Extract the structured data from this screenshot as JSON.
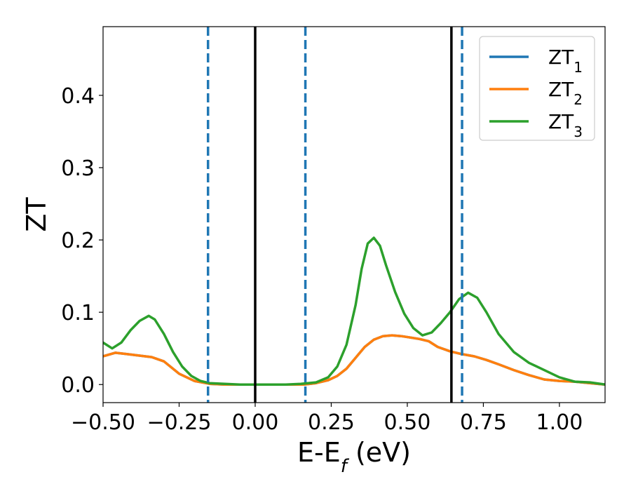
{
  "chart_data": {
    "type": "line",
    "xlabel": "E-E_f (eV)",
    "ylabel": "ZT",
    "xlim": [
      -0.5,
      1.15
    ],
    "ylim": [
      -0.025,
      0.495
    ],
    "xticks": [
      -0.5,
      -0.25,
      0.0,
      0.25,
      0.5,
      0.75,
      1.0
    ],
    "xtick_labels": [
      "−0.50",
      "−0.25",
      "0.00",
      "0.25",
      "0.50",
      "0.75",
      "1.00"
    ],
    "yticks": [
      0.0,
      0.1,
      0.2,
      0.3,
      0.4
    ],
    "ytick_labels": [
      "0.0",
      "0.1",
      "0.2",
      "0.3",
      "0.4"
    ],
    "grid": false,
    "legend_position": "top-right",
    "series": [
      {
        "name": "ZT1",
        "color": "#1f77b4",
        "x": [
          -0.5,
          -0.46,
          -0.42,
          -0.38,
          -0.34,
          -0.3,
          -0.25,
          -0.2,
          -0.15,
          -0.1,
          -0.05,
          0.0,
          0.05,
          0.1,
          0.16,
          0.2,
          0.24,
          0.27,
          0.3,
          0.33,
          0.36,
          0.39,
          0.42,
          0.45,
          0.48,
          0.51,
          0.54,
          0.57,
          0.6,
          0.64,
          0.68,
          0.72,
          0.76,
          0.8,
          0.85,
          0.9,
          0.95,
          1.0,
          1.05,
          1.1,
          1.15
        ],
        "y": [
          0.039,
          0.044,
          0.042,
          0.04,
          0.038,
          0.032,
          0.015,
          0.005,
          0.001,
          0.0,
          0.0,
          0.0,
          0.0,
          0.0,
          0.0,
          0.002,
          0.006,
          0.012,
          0.022,
          0.037,
          0.052,
          0.062,
          0.067,
          0.068,
          0.067,
          0.065,
          0.063,
          0.06,
          0.052,
          0.046,
          0.042,
          0.039,
          0.034,
          0.028,
          0.02,
          0.013,
          0.007,
          0.005,
          0.004,
          0.002,
          0.0
        ]
      },
      {
        "name": "ZT2",
        "color": "#ff7f0e",
        "x": [
          -0.5,
          -0.46,
          -0.42,
          -0.38,
          -0.34,
          -0.3,
          -0.25,
          -0.2,
          -0.15,
          -0.1,
          -0.05,
          0.0,
          0.05,
          0.1,
          0.16,
          0.2,
          0.24,
          0.27,
          0.3,
          0.33,
          0.36,
          0.39,
          0.42,
          0.45,
          0.48,
          0.51,
          0.54,
          0.57,
          0.6,
          0.64,
          0.68,
          0.72,
          0.76,
          0.8,
          0.85,
          0.9,
          0.95,
          1.0,
          1.05,
          1.1,
          1.15
        ],
        "y": [
          0.039,
          0.044,
          0.042,
          0.04,
          0.038,
          0.032,
          0.015,
          0.005,
          0.001,
          0.0,
          0.0,
          0.0,
          0.0,
          0.0,
          0.0,
          0.002,
          0.006,
          0.012,
          0.022,
          0.037,
          0.052,
          0.062,
          0.067,
          0.068,
          0.067,
          0.065,
          0.063,
          0.06,
          0.052,
          0.046,
          0.042,
          0.039,
          0.034,
          0.028,
          0.02,
          0.013,
          0.007,
          0.005,
          0.004,
          0.002,
          0.0
        ]
      },
      {
        "name": "ZT3",
        "color": "#2ca02c",
        "x": [
          -0.5,
          -0.47,
          -0.44,
          -0.41,
          -0.38,
          -0.35,
          -0.33,
          -0.3,
          -0.27,
          -0.24,
          -0.21,
          -0.18,
          -0.15,
          -0.1,
          -0.05,
          0.0,
          0.05,
          0.1,
          0.15,
          0.2,
          0.24,
          0.27,
          0.3,
          0.33,
          0.35,
          0.37,
          0.39,
          0.41,
          0.43,
          0.46,
          0.49,
          0.52,
          0.55,
          0.58,
          0.61,
          0.64,
          0.67,
          0.7,
          0.73,
          0.76,
          0.8,
          0.85,
          0.9,
          0.95,
          1.0,
          1.05,
          1.1,
          1.15
        ],
        "y": [
          0.058,
          0.05,
          0.058,
          0.075,
          0.088,
          0.095,
          0.09,
          0.07,
          0.045,
          0.025,
          0.012,
          0.005,
          0.002,
          0.001,
          0.0,
          0.0,
          0.0,
          0.0,
          0.001,
          0.003,
          0.01,
          0.025,
          0.055,
          0.11,
          0.16,
          0.195,
          0.203,
          0.192,
          0.165,
          0.128,
          0.098,
          0.078,
          0.068,
          0.072,
          0.085,
          0.1,
          0.118,
          0.127,
          0.12,
          0.1,
          0.07,
          0.045,
          0.03,
          0.02,
          0.01,
          0.004,
          0.003,
          0.0
        ]
      }
    ],
    "vlines": [
      {
        "x": -0.155,
        "style": "dashed",
        "color": "#1f77b4"
      },
      {
        "x": 0.0,
        "style": "solid",
        "color": "#000000"
      },
      {
        "x": 0.165,
        "style": "dashed",
        "color": "#1f77b4"
      },
      {
        "x": 0.645,
        "style": "solid",
        "color": "#000000"
      },
      {
        "x": 0.68,
        "style": "dashed",
        "color": "#1f77b4"
      }
    ]
  }
}
